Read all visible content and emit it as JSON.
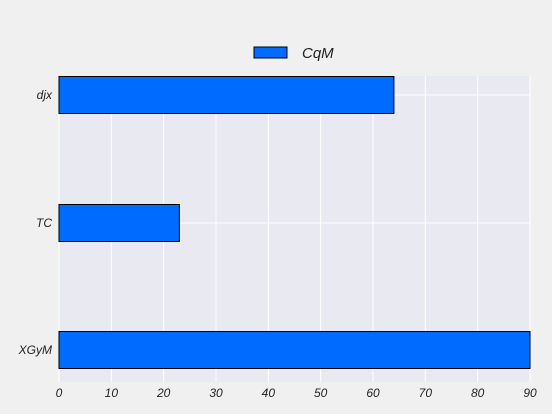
{
  "chart_data": {
    "type": "bar",
    "orientation": "horizontal",
    "categories": [
      "djx",
      "TC",
      "XGyM"
    ],
    "series": [
      {
        "name": "CqM",
        "values": [
          64,
          23,
          90
        ],
        "color": "#006bff"
      }
    ],
    "xlim": [
      0,
      90
    ],
    "xticks": [
      0,
      10,
      20,
      30,
      40,
      50,
      60,
      70,
      80,
      90
    ],
    "grid": true,
    "legend_position": "top-center",
    "title": "",
    "xlabel": "",
    "ylabel": ""
  },
  "style": {
    "page_background": "#f0f0f0",
    "plot_background": "#e9e9f2",
    "grid_color": "#ffffff",
    "bar_edge_color": "#000000"
  }
}
